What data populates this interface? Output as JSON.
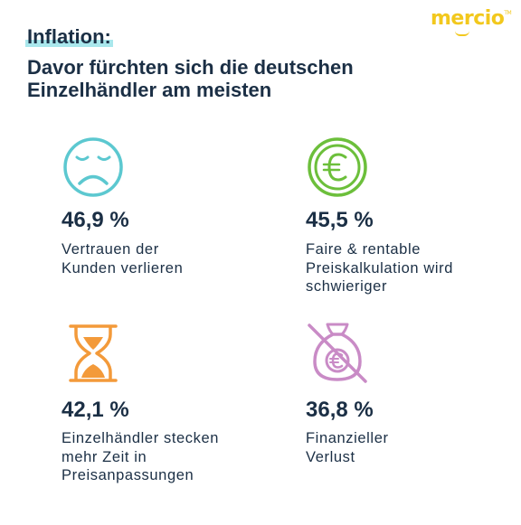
{
  "brand": {
    "name": "mercio",
    "trademark": "TM",
    "color": "#f2c81d"
  },
  "title": {
    "highlight": "Inflation:",
    "line1": "Davor fürchten sich die deutschen",
    "line2": "Einzelhändler am meisten"
  },
  "stats": [
    {
      "icon": "sad-face-icon",
      "color": "#5cc8d0",
      "percent": "46,9 %",
      "label": [
        "Vertrauen der",
        "Kunden verlieren"
      ]
    },
    {
      "icon": "euro-coin-icon",
      "color": "#6cbf3b",
      "percent": "45,5 %",
      "label": [
        "Faire & rentable",
        "Preiskalkulation wird",
        "schwieriger"
      ]
    },
    {
      "icon": "hourglass-icon",
      "color": "#f39a3a",
      "percent": "42,1 %",
      "label": [
        "Einzelhändler stecken",
        "mehr Zeit in",
        "Preisanpassungen"
      ]
    },
    {
      "icon": "crossed-money-bag-icon",
      "color": "#c98bc6",
      "percent": "36,8 %",
      "label": [
        "Finanzieller",
        "Verlust"
      ]
    }
  ]
}
